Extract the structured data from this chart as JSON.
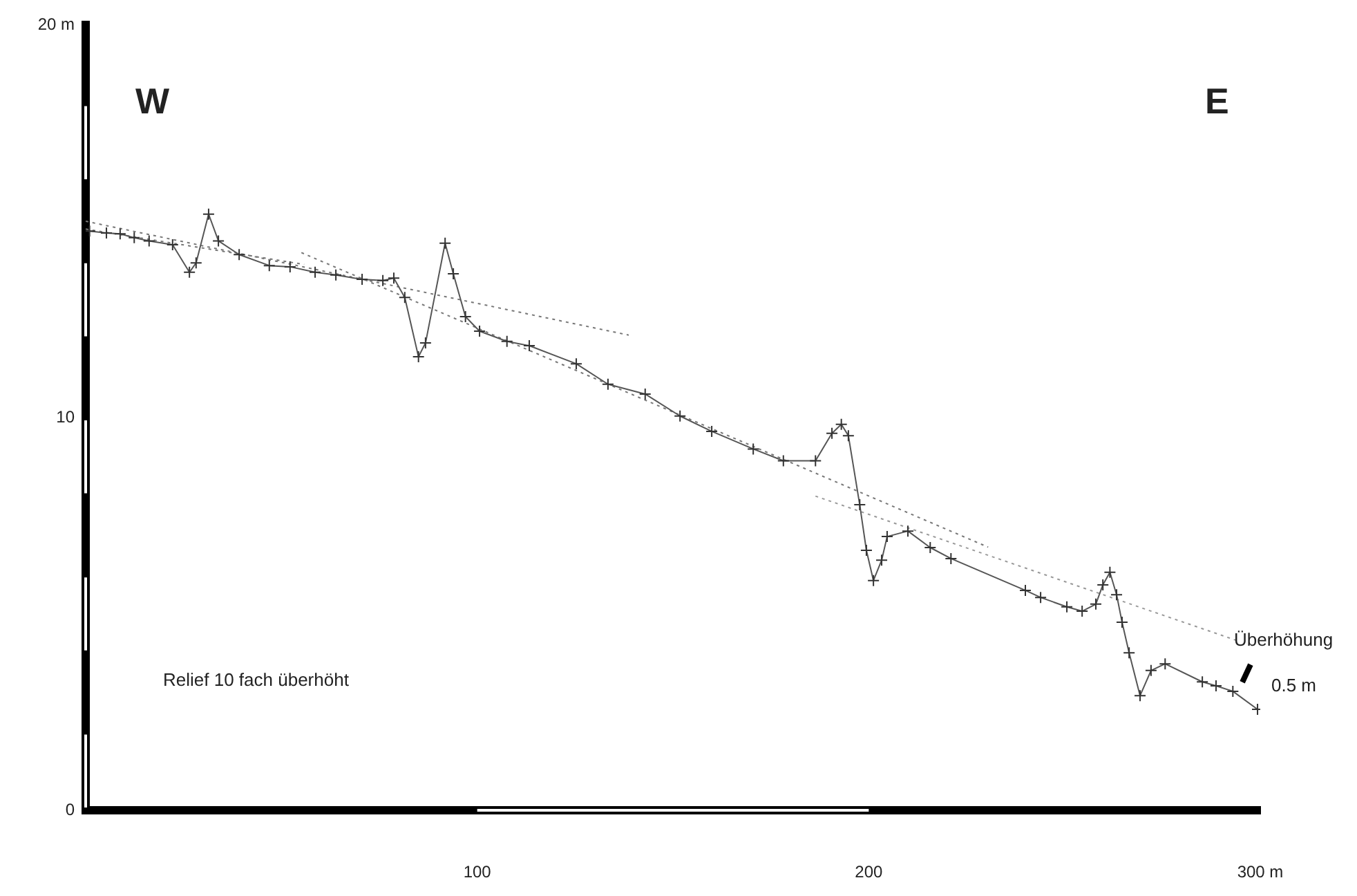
{
  "chart_data": {
    "type": "line",
    "xlim": [
      0,
      300
    ],
    "ylim": [
      0,
      20
    ],
    "xticks": [
      {
        "value": 100,
        "label": "100"
      },
      {
        "value": 200,
        "label": "200"
      },
      {
        "value": 300,
        "label": "300 m"
      }
    ],
    "yticks": [
      0,
      10,
      {
        "value": 20,
        "label": "20 m"
      }
    ],
    "grid": false,
    "legend": false,
    "marker": "cross",
    "line_style": "solid",
    "annotations": [
      "W",
      "E",
      "Relief 10 fach überhöht",
      "Überhöhung",
      "0.5 m"
    ],
    "series": [
      {
        "color": "#555555",
        "x": [
          1,
          5.3,
          8.8,
          12.4,
          16.2,
          22.2,
          26.5,
          28.2,
          31.4,
          33.9,
          39.2,
          46.9,
          52.2,
          58.6,
          63.9,
          70.6,
          75.9,
          78.7,
          81.5,
          85,
          86.8,
          91.8,
          93.9,
          97,
          100.6,
          107.6,
          113.3,
          125.3,
          133.4,
          142.9,
          151.8,
          159.9,
          170.5,
          178.2,
          186.4,
          190.6,
          193,
          194.8,
          197.7,
          199.4,
          201.2,
          203.3,
          204.7,
          210,
          215.7,
          221,
          240,
          243.9,
          250.6,
          254.5,
          258,
          259.8,
          261.6,
          263.3,
          264.7,
          266.5,
          269.3,
          272.1,
          275.7,
          285.2,
          288.7,
          293,
          299.3
        ],
        "values": [
          14.75,
          14.7,
          14.68,
          14.58,
          14.5,
          14.4,
          13.7,
          13.94,
          15.18,
          14.5,
          14.15,
          13.87,
          13.84,
          13.7,
          13.63,
          13.52,
          13.49,
          13.55,
          13.06,
          11.55,
          11.9,
          14.44,
          13.66,
          12.57,
          12.2,
          11.94,
          11.83,
          11.37,
          10.85,
          10.6,
          10.04,
          9.65,
          9.2,
          8.9,
          8.9,
          9.6,
          9.83,
          9.54,
          7.78,
          6.62,
          5.85,
          6.37,
          6.97,
          7.11,
          6.69,
          6.41,
          5.6,
          5.42,
          5.18,
          5.07,
          5.25,
          5.74,
          6.06,
          5.49,
          4.79,
          4.01,
          2.92,
          3.56,
          3.73,
          3.27,
          3.17,
          3.03,
          2.57
        ]
      },
      {
        "type": "line",
        "color": "#777777",
        "line_style": "dotted",
        "marker": "none",
        "x": [
          0,
          138.7
        ],
        "values": [
          15.0,
          12.1
        ]
      },
      {
        "type": "line",
        "color": "#777777",
        "line_style": "dotted",
        "marker": "none",
        "x": [
          0,
          55.8
        ],
        "values": [
          14.8,
          13.9
        ]
      },
      {
        "type": "line",
        "color": "#777777",
        "line_style": "dotted",
        "marker": "none",
        "x": [
          55.1,
          230.5
        ],
        "values": [
          14.2,
          6.7
        ]
      },
      {
        "type": "line",
        "color": "#999999",
        "line_style": "dotted",
        "marker": "none",
        "x": [
          186.4,
          294.7
        ],
        "values": [
          8.0,
          4.3
        ]
      }
    ]
  }
}
